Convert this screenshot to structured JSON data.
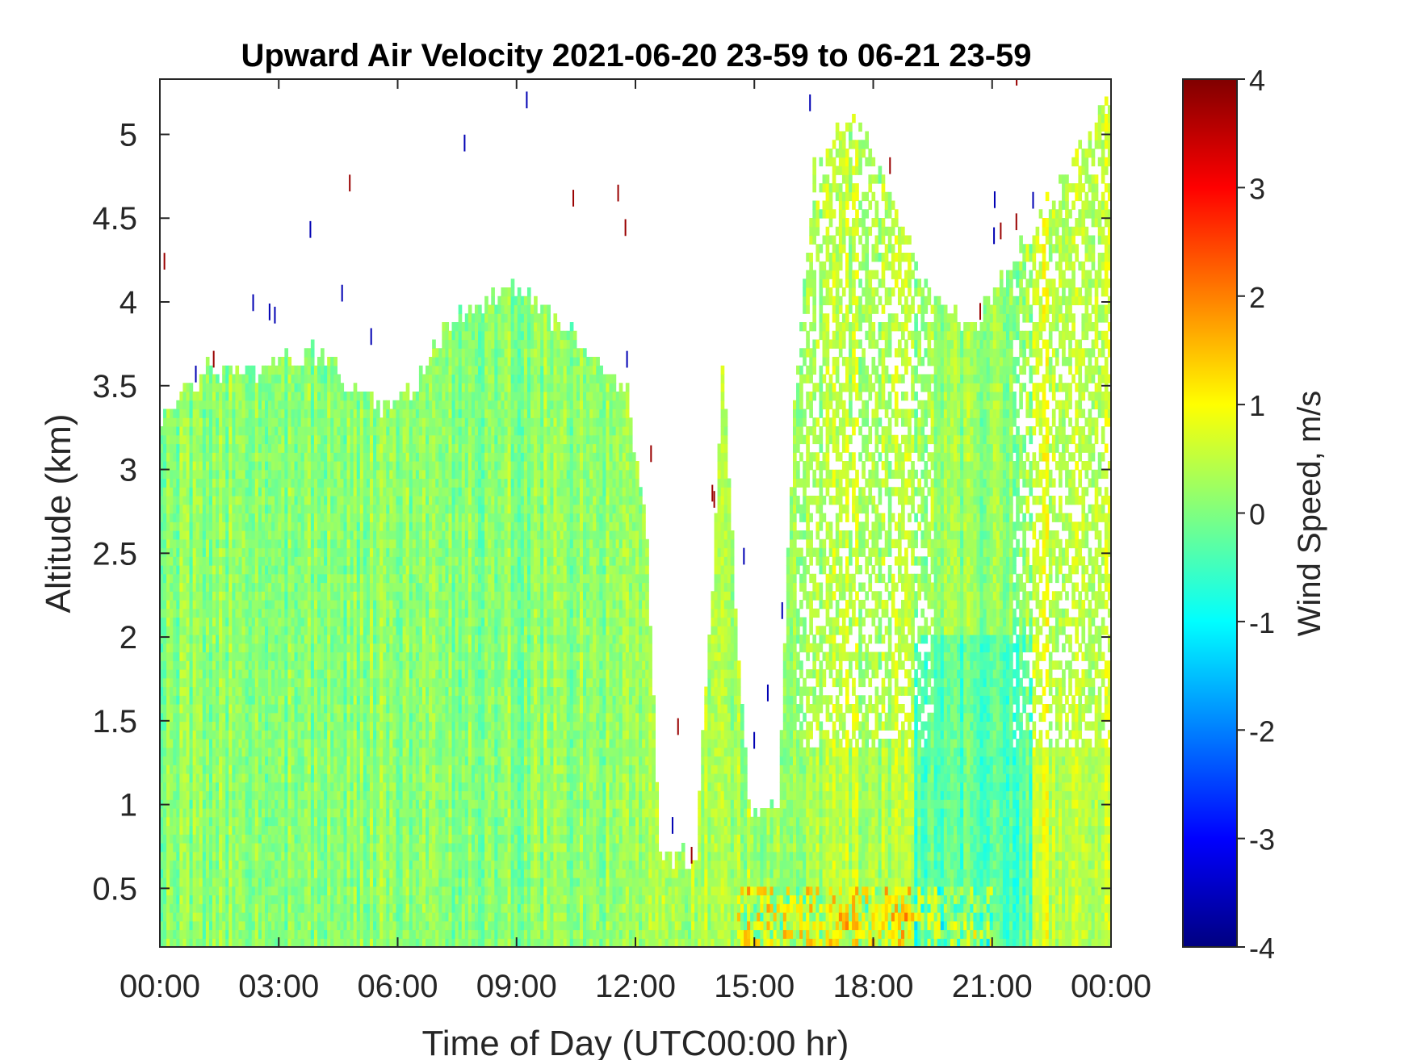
{
  "chart_data": {
    "type": "heatmap",
    "title": "Upward Air Velocity 2021-06-20 23-59 to 06-21 23-59",
    "xlabel": "Time of Day (UTC00:00 hr)",
    "ylabel": "Altitude (km)",
    "colorbar_label": "Wind Speed, m/s",
    "colormap": "jet",
    "x_ticks": [
      {
        "value": 0,
        "label": "00:00"
      },
      {
        "value": 3,
        "label": "03:00"
      },
      {
        "value": 6,
        "label": "06:00"
      },
      {
        "value": 9,
        "label": "09:00"
      },
      {
        "value": 12,
        "label": "12:00"
      },
      {
        "value": 15,
        "label": "15:00"
      },
      {
        "value": 18,
        "label": "18:00"
      },
      {
        "value": 21,
        "label": "21:00"
      },
      {
        "value": 24,
        "label": "00:00"
      }
    ],
    "y_ticks": [
      {
        "value": 0.5,
        "label": "0.5"
      },
      {
        "value": 1,
        "label": "1"
      },
      {
        "value": 1.5,
        "label": "1.5"
      },
      {
        "value": 2,
        "label": "2"
      },
      {
        "value": 2.5,
        "label": "2.5"
      },
      {
        "value": 3,
        "label": "3"
      },
      {
        "value": 3.5,
        "label": "3.5"
      },
      {
        "value": 4,
        "label": "4"
      },
      {
        "value": 4.5,
        "label": "4.5"
      },
      {
        "value": 5,
        "label": "5"
      }
    ],
    "colorbar_ticks": [
      {
        "value": 4,
        "label": "4"
      },
      {
        "value": 3,
        "label": "3"
      },
      {
        "value": 2,
        "label": "2"
      },
      {
        "value": 1,
        "label": "1"
      },
      {
        "value": 0,
        "label": "0"
      },
      {
        "value": -1,
        "label": "-1"
      },
      {
        "value": -2,
        "label": "-2"
      },
      {
        "value": -3,
        "label": "-3"
      },
      {
        "value": -4,
        "label": "-4"
      }
    ],
    "xlim": [
      0,
      24
    ],
    "ylim": [
      0.15,
      5.33
    ],
    "clim": [
      -4,
      4
    ],
    "data_top_profile": [
      {
        "time": 0.0,
        "altitude_top": 3.27
      },
      {
        "time": 0.2,
        "altitude_top": 3.35
      },
      {
        "time": 0.7,
        "altitude_top": 3.45
      },
      {
        "time": 1.2,
        "altitude_top": 3.57
      },
      {
        "time": 2.5,
        "altitude_top": 3.57
      },
      {
        "time": 4.0,
        "altitude_top": 3.67
      },
      {
        "time": 4.8,
        "altitude_top": 3.5
      },
      {
        "time": 5.5,
        "altitude_top": 3.35
      },
      {
        "time": 6.5,
        "altitude_top": 3.5
      },
      {
        "time": 7.3,
        "altitude_top": 3.85
      },
      {
        "time": 8.0,
        "altitude_top": 3.97
      },
      {
        "time": 9.0,
        "altitude_top": 4.05
      },
      {
        "time": 10.0,
        "altitude_top": 3.85
      },
      {
        "time": 11.0,
        "altitude_top": 3.65
      },
      {
        "time": 11.8,
        "altitude_top": 3.45
      },
      {
        "time": 12.3,
        "altitude_top": 2.5
      },
      {
        "time": 12.6,
        "altitude_top": 0.68
      },
      {
        "time": 13.2,
        "altitude_top": 0.68
      },
      {
        "time": 13.5,
        "altitude_top": 0.58
      },
      {
        "time": 14.0,
        "altitude_top": 2.5
      },
      {
        "time": 14.2,
        "altitude_top": 3.7
      },
      {
        "time": 14.6,
        "altitude_top": 1.8
      },
      {
        "time": 14.9,
        "altitude_top": 0.92
      },
      {
        "time": 15.6,
        "altitude_top": 0.98
      },
      {
        "time": 16.0,
        "altitude_top": 3.3
      },
      {
        "time": 16.5,
        "altitude_top": 4.8
      },
      {
        "time": 17.5,
        "altitude_top": 5.1
      },
      {
        "time": 18.5,
        "altitude_top": 4.6
      },
      {
        "time": 19.5,
        "altitude_top": 4.0
      },
      {
        "time": 20.5,
        "altitude_top": 3.8
      },
      {
        "time": 21.5,
        "altitude_top": 4.2
      },
      {
        "time": 22.5,
        "altitude_top": 4.6
      },
      {
        "time": 24.0,
        "altitude_top": 5.2
      }
    ],
    "typical_value_by_period": [
      {
        "period": "00:00-12:00",
        "wind_speed": 0.1
      },
      {
        "period": "12:00-16:00 (below 1 km)",
        "wind_speed": 0.3
      },
      {
        "period": "16:00-19:00",
        "wind_speed": 0.4
      },
      {
        "period": "19:00-22:00",
        "wind_speed": -0.3
      },
      {
        "period": "22:00-24:00",
        "wind_speed": 0.6
      }
    ],
    "grid": false,
    "legend": "colorbar-right"
  }
}
